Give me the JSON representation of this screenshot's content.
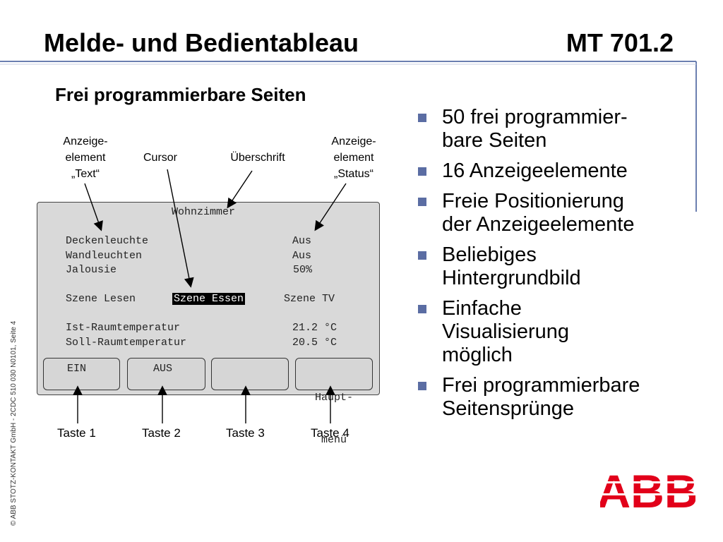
{
  "header": {
    "title": "Melde- und Bedientableau",
    "model": "MT 701.2"
  },
  "subtitle": "Frei programmierbare Seiten",
  "annotations": {
    "anzeige_text": [
      "Anzeige-",
      "element",
      "„Text“"
    ],
    "cursor": "Cursor",
    "ueberschrift": "Überschrift",
    "anzeige_status": [
      "Anzeige-",
      "element",
      "„Status“"
    ]
  },
  "display": {
    "heading": "Wohnzimmer",
    "rows": [
      {
        "label": "Deckenleuchte",
        "value": "Aus"
      },
      {
        "label": "Wandleuchten",
        "value": "Aus"
      },
      {
        "label": "Jalousie",
        "value": "50%"
      }
    ],
    "scenes": [
      "Szene Lesen",
      "Szene Essen",
      "Szene TV"
    ],
    "temps": [
      {
        "label": "Ist-Raumtemperatur",
        "value": "21.2 °C"
      },
      {
        "label": "Soll-Raumtemperatur",
        "value": "20.5 °C"
      }
    ],
    "keys": [
      "EIN",
      "AUS",
      "",
      "Haupt-",
      "menü"
    ]
  },
  "taste_labels": [
    "Taste 1",
    "Taste 2",
    "Taste 3",
    "Taste 4"
  ],
  "bullets": [
    "50 frei programmier-",
    "bare Seiten",
    "16 Anzeigeelemente",
    "Freie Positionierung",
    "der Anzeigeelemente",
    "Beliebiges",
    "Hintergrundbild",
    "Einfache",
    "Visualisierung",
    "möglich",
    "Frei programmierbare",
    "Seitensprünge"
  ],
  "footer_vertical": "© ABB STOTZ-KONTAKT GmbH - 2CDC 510 030 N0101, Seite 4",
  "logo": {
    "text": "ABB",
    "color": "#e2001a"
  },
  "accent_color": "#5b6da3"
}
